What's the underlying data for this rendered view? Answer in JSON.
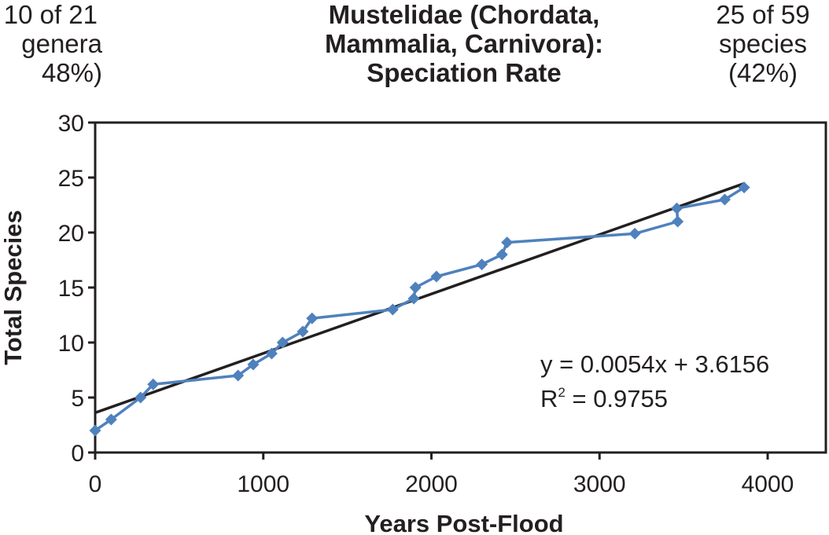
{
  "notes": {
    "left": [
      "10 of 21",
      "genera",
      "48%)"
    ],
    "right": [
      "25 of 59",
      "species",
      "(42%)"
    ]
  },
  "chart_data": {
    "type": "scatter",
    "title": [
      "Mustelidae (Chordata,",
      "Mammalia, Carnivora):",
      "Speciation Rate"
    ],
    "xlabel": "Years Post-Flood",
    "ylabel": "Total Species",
    "xlim": [
      0,
      4000
    ],
    "ylim": [
      0,
      30
    ],
    "xticks": [
      0,
      1000,
      2000,
      3000,
      4000
    ],
    "yticks": [
      0,
      5,
      10,
      15,
      20,
      25,
      30
    ],
    "grid": false,
    "series": [
      {
        "color": "#4f81bd",
        "marker": "diamond",
        "connected": true,
        "points": [
          [
            0,
            2
          ],
          [
            95,
            3
          ],
          [
            270,
            5
          ],
          [
            345,
            6.2
          ],
          [
            850,
            7
          ],
          [
            940,
            8
          ],
          [
            1050,
            9
          ],
          [
            1115,
            10
          ],
          [
            1235,
            11
          ],
          [
            1290,
            12.2
          ],
          [
            1770,
            13
          ],
          [
            1895,
            14
          ],
          [
            1905,
            15
          ],
          [
            2030,
            16
          ],
          [
            2300,
            17.1
          ],
          [
            2420,
            18
          ],
          [
            2450,
            19.1
          ],
          [
            3210,
            19.9
          ],
          [
            3465,
            21
          ],
          [
            3460,
            22.2
          ],
          [
            3745,
            23
          ],
          [
            3860,
            24.1
          ]
        ]
      }
    ],
    "trendline": {
      "color": "#231f20",
      "slope": 0.0054,
      "intercept": 3.6156,
      "x_range": [
        0,
        3860
      ],
      "equation": "y = 0.0054x + 3.6156",
      "r2_label": "R",
      "r2_sup": "2",
      "r2_value": " = 0.9755"
    }
  }
}
